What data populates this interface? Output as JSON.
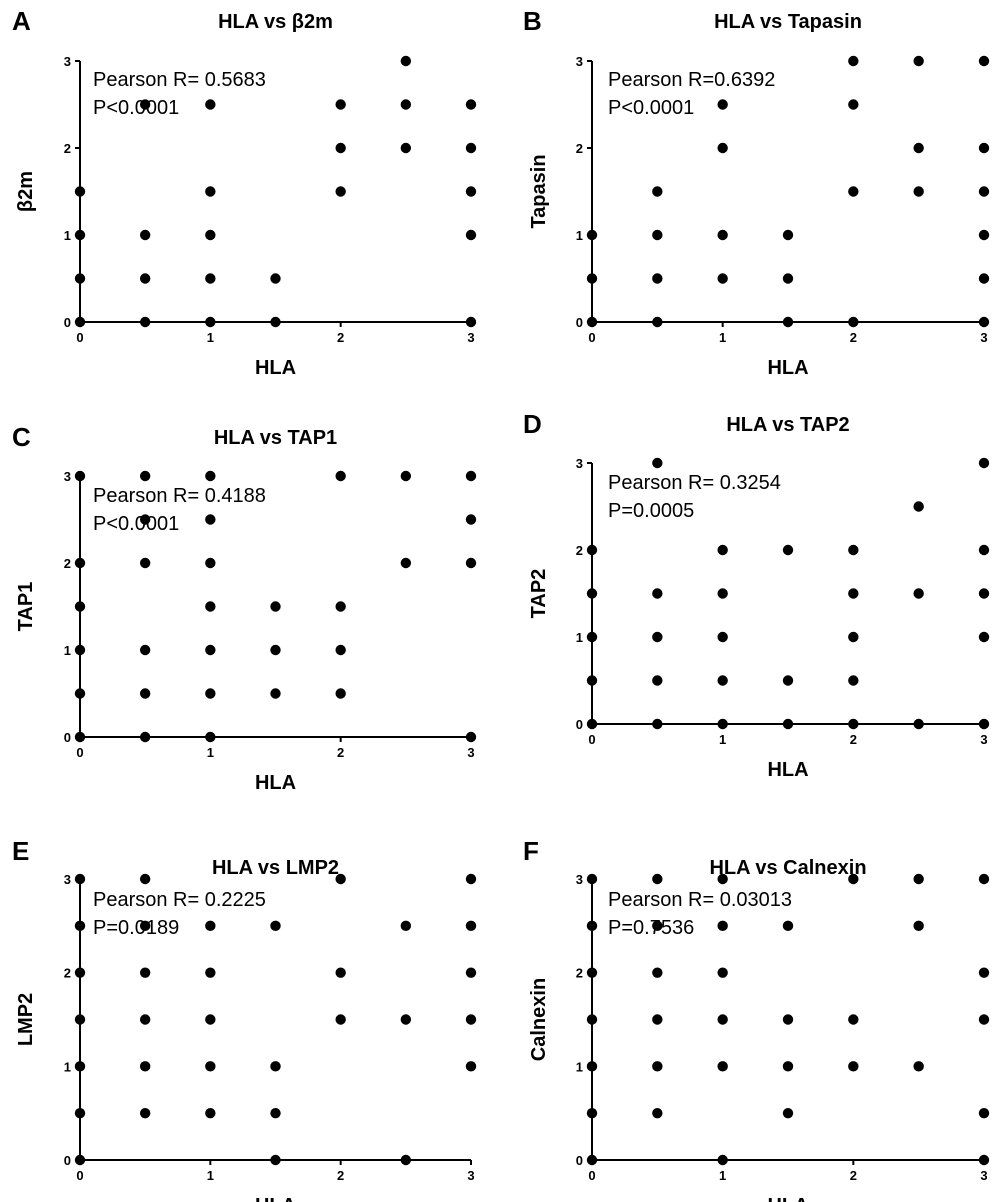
{
  "chart_data": [
    {
      "type": "scatter",
      "panel": "A",
      "title": "HLA vs β2m",
      "xlabel": "HLA",
      "ylabel": "β2m",
      "xlim": [
        0,
        3
      ],
      "ylim": [
        0,
        3
      ],
      "xticks": [
        "0",
        "1",
        "2",
        "3"
      ],
      "yticks": [
        "0",
        "1",
        "2",
        "3"
      ],
      "annotation": [
        "Pearson R= 0.5683",
        "P<0.0001"
      ],
      "points": [
        [
          0,
          0
        ],
        [
          0,
          0.5
        ],
        [
          0,
          1
        ],
        [
          0,
          1.5
        ],
        [
          0.5,
          0
        ],
        [
          0.5,
          0.5
        ],
        [
          0.5,
          1
        ],
        [
          0.5,
          2.5
        ],
        [
          1,
          0
        ],
        [
          1,
          0.5
        ],
        [
          1,
          1
        ],
        [
          1,
          1.5
        ],
        [
          1,
          2.5
        ],
        [
          1.5,
          0
        ],
        [
          1.5,
          0.5
        ],
        [
          2,
          1.5
        ],
        [
          2,
          2
        ],
        [
          2,
          2.5
        ],
        [
          2.5,
          2
        ],
        [
          2.5,
          2.5
        ],
        [
          2.5,
          3
        ],
        [
          3,
          0
        ],
        [
          3,
          1
        ],
        [
          3,
          1.5
        ],
        [
          3,
          2
        ],
        [
          3,
          2.5
        ]
      ]
    },
    {
      "type": "scatter",
      "panel": "B",
      "title": "HLA vs Tapasin",
      "xlabel": "HLA",
      "ylabel": "Tapasin",
      "xlim": [
        0,
        3
      ],
      "ylim": [
        0,
        3
      ],
      "xticks": [
        "0",
        "1",
        "2",
        "3"
      ],
      "yticks": [
        "0",
        "1",
        "2",
        "3"
      ],
      "annotation": [
        "Pearson R=0.6392",
        "P<0.0001"
      ],
      "points": [
        [
          0,
          0
        ],
        [
          0,
          0.5
        ],
        [
          0,
          1
        ],
        [
          0.5,
          0
        ],
        [
          0.5,
          0.5
        ],
        [
          0.5,
          1
        ],
        [
          0.5,
          1.5
        ],
        [
          1,
          0.5
        ],
        [
          1,
          1
        ],
        [
          1,
          2
        ],
        [
          1,
          2.5
        ],
        [
          1.5,
          0
        ],
        [
          1.5,
          0.5
        ],
        [
          1.5,
          1
        ],
        [
          2,
          0
        ],
        [
          2,
          1.5
        ],
        [
          2,
          2.5
        ],
        [
          2,
          3
        ],
        [
          2.5,
          1.5
        ],
        [
          2.5,
          2
        ],
        [
          2.5,
          3
        ],
        [
          3,
          0
        ],
        [
          3,
          0.5
        ],
        [
          3,
          1
        ],
        [
          3,
          1.5
        ],
        [
          3,
          2
        ],
        [
          3,
          3
        ]
      ]
    },
    {
      "type": "scatter",
      "panel": "C",
      "title": "HLA vs TAP1",
      "xlabel": "HLA",
      "ylabel": "TAP1",
      "xlim": [
        0,
        3
      ],
      "ylim": [
        0,
        3
      ],
      "xticks": [
        "0",
        "1",
        "2",
        "3"
      ],
      "yticks": [
        "0",
        "1",
        "2",
        "3"
      ],
      "annotation": [
        "Pearson R= 0.4188",
        "P<0.0001"
      ],
      "points": [
        [
          0,
          0
        ],
        [
          0,
          0.5
        ],
        [
          0,
          1
        ],
        [
          0,
          1.5
        ],
        [
          0,
          2
        ],
        [
          0,
          3
        ],
        [
          0.5,
          0
        ],
        [
          0.5,
          0.5
        ],
        [
          0.5,
          1
        ],
        [
          0.5,
          2
        ],
        [
          0.5,
          2.5
        ],
        [
          0.5,
          3
        ],
        [
          1,
          0
        ],
        [
          1,
          0.5
        ],
        [
          1,
          1
        ],
        [
          1,
          1.5
        ],
        [
          1,
          2
        ],
        [
          1,
          2.5
        ],
        [
          1,
          3
        ],
        [
          1.5,
          0.5
        ],
        [
          1.5,
          1
        ],
        [
          1.5,
          1.5
        ],
        [
          2,
          0.5
        ],
        [
          2,
          1
        ],
        [
          2,
          1.5
        ],
        [
          2,
          3
        ],
        [
          2.5,
          2
        ],
        [
          2.5,
          3
        ],
        [
          3,
          0
        ],
        [
          3,
          2
        ],
        [
          3,
          2.5
        ],
        [
          3,
          3
        ]
      ]
    },
    {
      "type": "scatter",
      "panel": "D",
      "title": "HLA vs TAP2",
      "xlabel": "HLA",
      "ylabel": "TAP2",
      "xlim": [
        0,
        3
      ],
      "ylim": [
        0,
        3
      ],
      "xticks": [
        "0",
        "1",
        "2",
        "3"
      ],
      "yticks": [
        "0",
        "1",
        "2",
        "3"
      ],
      "annotation": [
        "Pearson R= 0.3254",
        "P=0.0005"
      ],
      "points": [
        [
          0,
          0
        ],
        [
          0,
          0.5
        ],
        [
          0,
          1
        ],
        [
          0,
          1.5
        ],
        [
          0,
          2
        ],
        [
          0.5,
          0
        ],
        [
          0.5,
          0.5
        ],
        [
          0.5,
          1
        ],
        [
          0.5,
          1.5
        ],
        [
          0.5,
          3
        ],
        [
          1,
          0
        ],
        [
          1,
          0.5
        ],
        [
          1,
          1
        ],
        [
          1,
          1.5
        ],
        [
          1,
          2
        ],
        [
          1.5,
          0
        ],
        [
          1.5,
          0.5
        ],
        [
          1.5,
          2
        ],
        [
          2,
          0
        ],
        [
          2,
          0.5
        ],
        [
          2,
          1
        ],
        [
          2,
          1.5
        ],
        [
          2,
          2
        ],
        [
          2.5,
          0
        ],
        [
          2.5,
          1.5
        ],
        [
          2.5,
          2.5
        ],
        [
          3,
          0
        ],
        [
          3,
          1
        ],
        [
          3,
          1.5
        ],
        [
          3,
          2
        ],
        [
          3,
          3
        ]
      ]
    },
    {
      "type": "scatter",
      "panel": "E",
      "title": "HLA vs LMP2",
      "xlabel": "HLA",
      "ylabel": "LMP2",
      "xlim": [
        0,
        3
      ],
      "ylim": [
        0,
        3
      ],
      "xticks": [
        "0",
        "1",
        "2",
        "3"
      ],
      "yticks": [
        "0",
        "1",
        "2",
        "3"
      ],
      "annotation": [
        "Pearson R= 0.2225",
        "P=0.0189"
      ],
      "points": [
        [
          0,
          0
        ],
        [
          0,
          0.5
        ],
        [
          0,
          1
        ],
        [
          0,
          1.5
        ],
        [
          0,
          2
        ],
        [
          0,
          2.5
        ],
        [
          0,
          3
        ],
        [
          0.5,
          0.5
        ],
        [
          0.5,
          1
        ],
        [
          0.5,
          1.5
        ],
        [
          0.5,
          2
        ],
        [
          0.5,
          2.5
        ],
        [
          0.5,
          3
        ],
        [
          1,
          0.5
        ],
        [
          1,
          1
        ],
        [
          1,
          1.5
        ],
        [
          1,
          2
        ],
        [
          1,
          2.5
        ],
        [
          1.5,
          0
        ],
        [
          1.5,
          0.5
        ],
        [
          1.5,
          1
        ],
        [
          1.5,
          2.5
        ],
        [
          2,
          1.5
        ],
        [
          2,
          2
        ],
        [
          2,
          3
        ],
        [
          2.5,
          0
        ],
        [
          2.5,
          1.5
        ],
        [
          2.5,
          2.5
        ],
        [
          3,
          1
        ],
        [
          3,
          1.5
        ],
        [
          3,
          2
        ],
        [
          3,
          2.5
        ],
        [
          3,
          3
        ]
      ]
    },
    {
      "type": "scatter",
      "panel": "F",
      "title": "HLA vs Calnexin",
      "xlabel": "HLA",
      "ylabel": "Calnexin",
      "xlim": [
        0,
        3
      ],
      "ylim": [
        0,
        3
      ],
      "xticks": [
        "0",
        "1",
        "2",
        "3"
      ],
      "yticks": [
        "0",
        "1",
        "2",
        "3"
      ],
      "annotation": [
        "Pearson R= 0.03013",
        "P=0.7536"
      ],
      "points": [
        [
          0,
          0
        ],
        [
          0,
          0.5
        ],
        [
          0,
          1
        ],
        [
          0,
          1.5
        ],
        [
          0,
          2
        ],
        [
          0,
          2.5
        ],
        [
          0,
          3
        ],
        [
          0.5,
          0.5
        ],
        [
          0.5,
          1
        ],
        [
          0.5,
          1.5
        ],
        [
          0.5,
          2
        ],
        [
          0.5,
          2.5
        ],
        [
          0.5,
          3
        ],
        [
          1,
          0
        ],
        [
          1,
          1
        ],
        [
          1,
          1.5
        ],
        [
          1,
          2
        ],
        [
          1,
          2.5
        ],
        [
          1,
          3
        ],
        [
          1.5,
          0.5
        ],
        [
          1.5,
          1
        ],
        [
          1.5,
          1.5
        ],
        [
          1.5,
          2.5
        ],
        [
          2,
          1
        ],
        [
          2,
          1.5
        ],
        [
          2,
          3
        ],
        [
          2.5,
          1
        ],
        [
          2.5,
          2.5
        ],
        [
          2.5,
          3
        ],
        [
          3,
          0
        ],
        [
          3,
          0.5
        ],
        [
          3,
          1.5
        ],
        [
          3,
          2
        ],
        [
          3,
          3
        ]
      ]
    }
  ]
}
